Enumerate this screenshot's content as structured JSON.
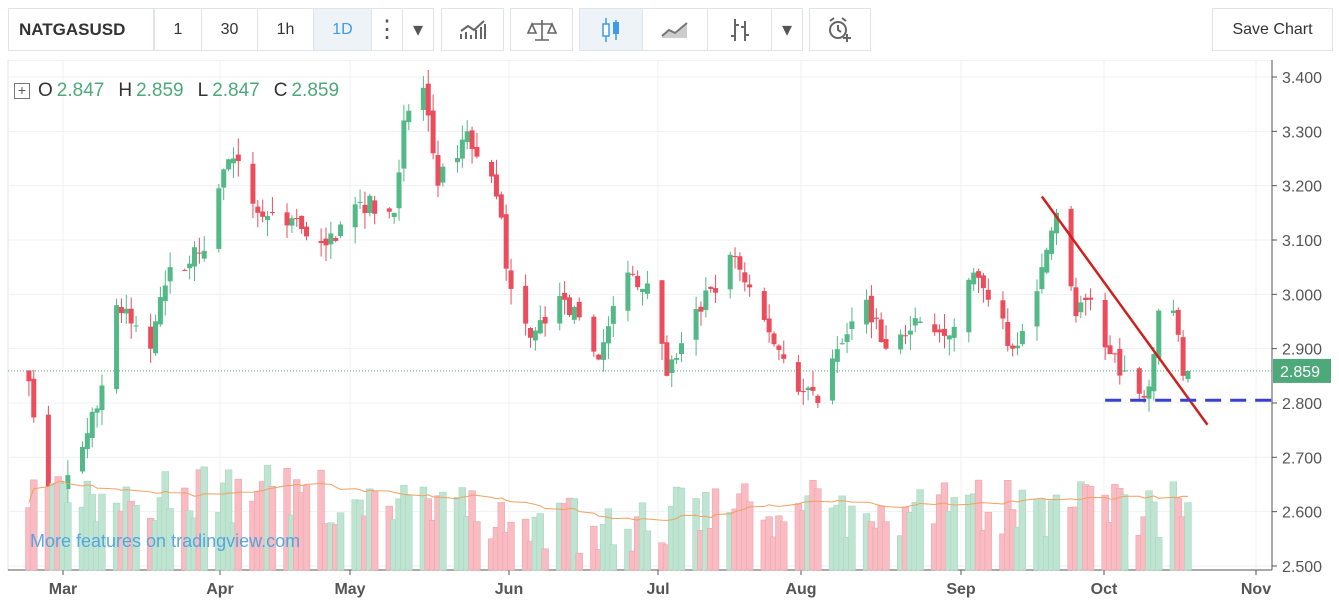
{
  "toolbar": {
    "symbol": "NATGASUSD",
    "intervals": [
      "1",
      "30",
      "1h",
      "1D"
    ],
    "active_interval": "1D",
    "more": "⋮",
    "dropdown": "▾",
    "indicators_icon": "indicators-icon",
    "compare_icon": "compare-scale-icon",
    "candles_icon": "candlestick-icon",
    "area_icon": "area-chart-icon",
    "bars_icon": "bar-chart-icon",
    "alert_icon": "alert-add-icon",
    "save_label": "Save Chart"
  },
  "legend": {
    "o_label": "O",
    "o": "2.847",
    "h_label": "H",
    "h": "2.859",
    "l_label": "L",
    "l": "2.847",
    "c_label": "C",
    "c": "2.859"
  },
  "watermark": "More features on tradingview.com",
  "colors": {
    "up": "#53b987",
    "down": "#eb4d5c",
    "up_vol": "#bfe5d2",
    "down_vol": "#f8bcc2",
    "sma": "#f0a060",
    "trend": "#d0201e",
    "support": "#3a3fd0",
    "last": "#4ea97a"
  },
  "chart_data": {
    "type": "candlestick",
    "symbol": "NATGASUSD",
    "y_ticks": [
      "3.400",
      "3.300",
      "3.200",
      "3.100",
      "3.000",
      "2.900",
      "2.800",
      "2.700",
      "2.600",
      "2.500"
    ],
    "ylim": [
      2.5,
      3.4
    ],
    "x_ticks": [
      "Mar",
      "Apr",
      "May",
      "Jun",
      "Jul",
      "Aug",
      "Sep",
      "Oct",
      "Nov"
    ],
    "last_price": "2.859",
    "close_keypoints": [
      [
        "02-22",
        2.84
      ],
      [
        "02-26",
        2.62
      ],
      [
        "03-01",
        2.64
      ],
      [
        "03-08",
        2.79
      ],
      [
        "03-12",
        2.98
      ],
      [
        "03-19",
        2.9
      ],
      [
        "03-23",
        3.05
      ],
      [
        "03-30",
        3.08
      ],
      [
        "04-03",
        3.23
      ],
      [
        "04-05",
        3.25
      ],
      [
        "04-10",
        3.15
      ],
      [
        "04-17",
        3.14
      ],
      [
        "04-24",
        3.09
      ],
      [
        "05-01",
        3.17
      ],
      [
        "05-08",
        3.15
      ],
      [
        "05-10",
        3.32
      ],
      [
        "05-14",
        3.38
      ],
      [
        "05-17",
        3.2
      ],
      [
        "05-23",
        3.3
      ],
      [
        "05-29",
        3.18
      ],
      [
        "06-01",
        3.01
      ],
      [
        "06-05",
        2.92
      ],
      [
        "06-12",
        2.99
      ],
      [
        "06-19",
        2.88
      ],
      [
        "06-25",
        3.04
      ],
      [
        "06-29",
        3.02
      ],
      [
        "07-03",
        2.85
      ],
      [
        "07-06",
        2.91
      ],
      [
        "07-12",
        3.01
      ],
      [
        "07-17",
        3.07
      ],
      [
        "07-24",
        2.93
      ],
      [
        "07-31",
        2.82
      ],
      [
        "08-03",
        2.8
      ],
      [
        "08-08",
        2.91
      ],
      [
        "08-13",
        2.99
      ],
      [
        "08-17",
        2.9
      ],
      [
        "08-24",
        2.95
      ],
      [
        "08-31",
        2.94
      ],
      [
        "09-04",
        3.04
      ],
      [
        "09-07",
        2.99
      ],
      [
        "09-12",
        2.9
      ],
      [
        "09-18",
        3.05
      ],
      [
        "09-21",
        3.15
      ],
      [
        "09-25",
        2.96
      ],
      [
        "09-28",
        2.99
      ],
      [
        "10-02",
        2.89
      ],
      [
        "10-05",
        2.86
      ],
      [
        "10-09",
        2.81
      ],
      [
        "10-11",
        2.89
      ],
      [
        "10-12",
        2.97
      ],
      [
        "10-15",
        2.97
      ],
      [
        "10-17",
        2.85
      ],
      [
        "10-18",
        2.859
      ]
    ],
    "drawings": [
      {
        "type": "trend-line",
        "from": [
          "09-18",
          3.18
        ],
        "to": [
          "10-22",
          2.76
        ]
      },
      {
        "type": "horizontal-ray",
        "from": "10-01",
        "price": 2.805
      }
    ],
    "volume": {
      "sma": true
    }
  }
}
